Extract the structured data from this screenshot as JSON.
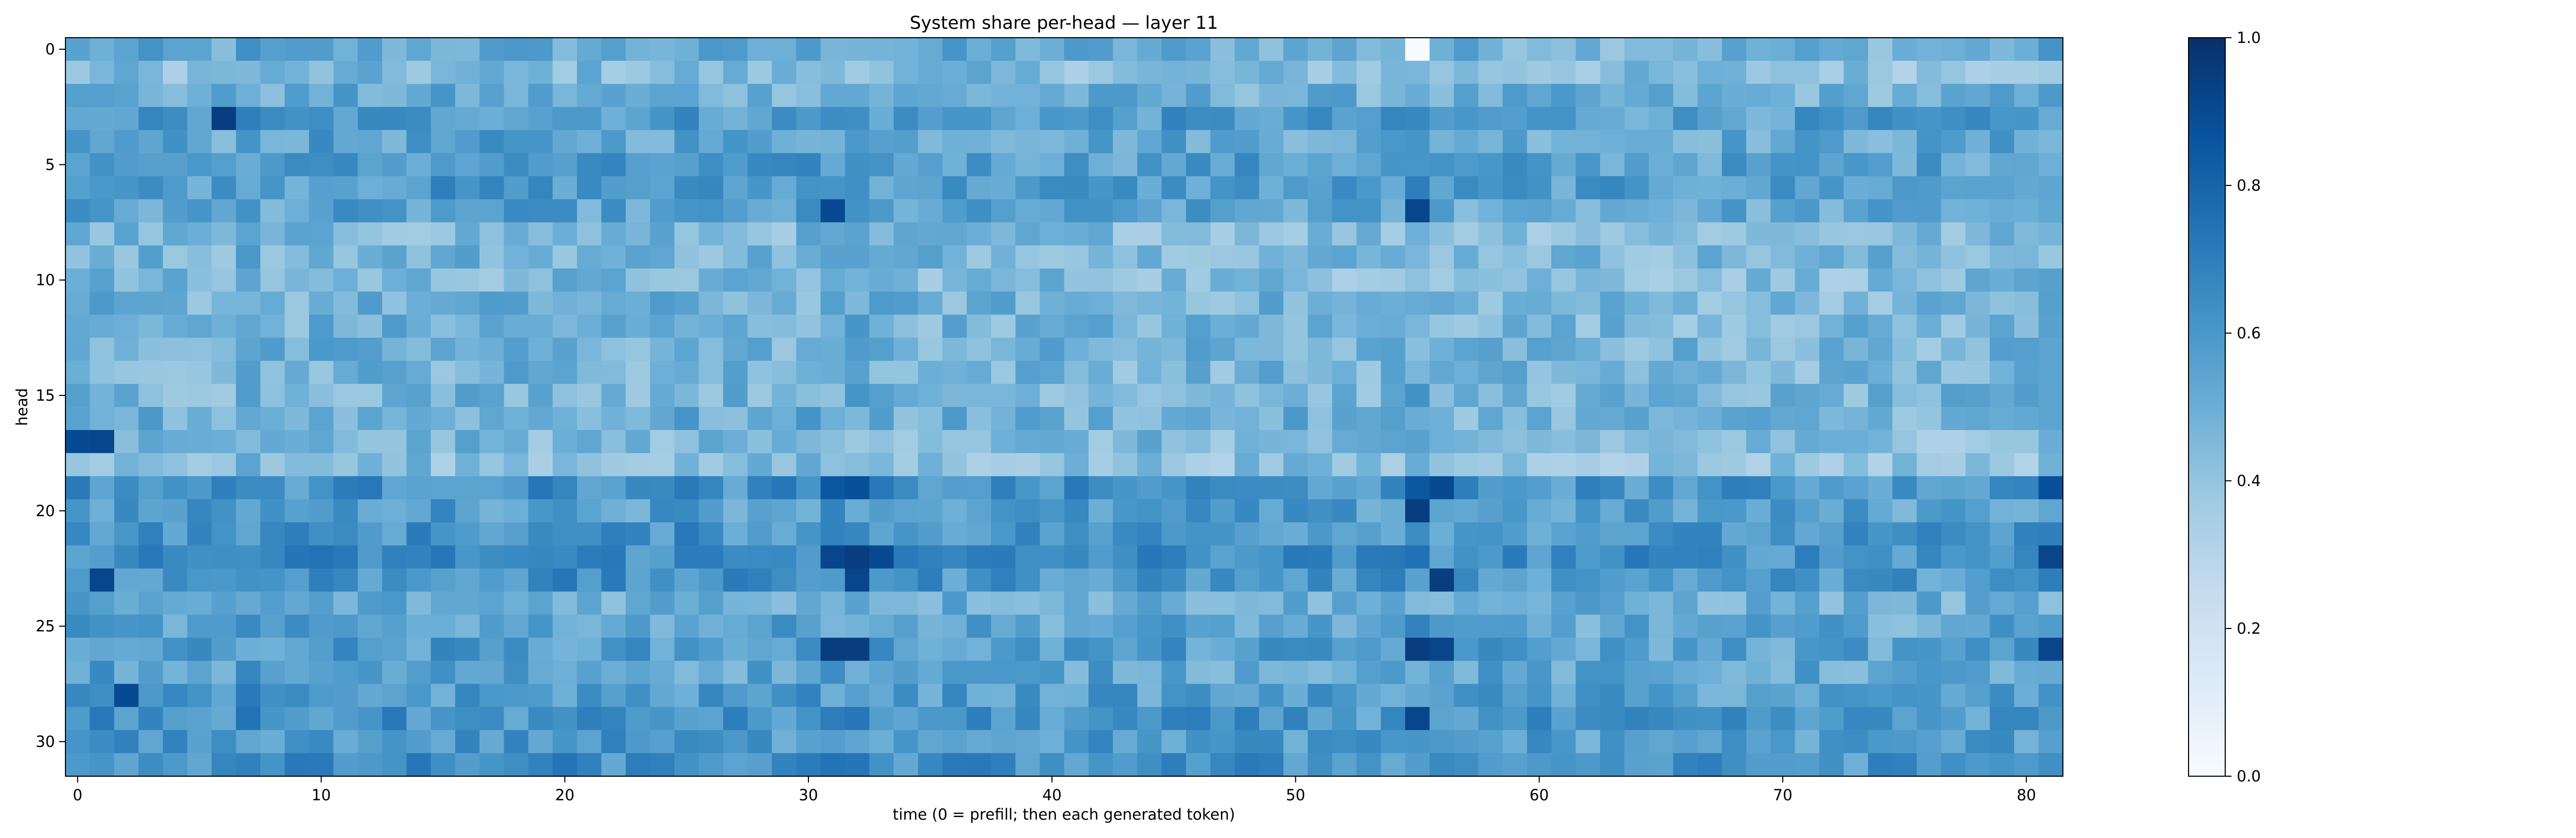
{
  "chart_data": {
    "type": "heatmap",
    "title": "System share per-head — layer 11",
    "xlabel": "time (0 = prefill; then each generated token)",
    "ylabel": "head",
    "n_x": 82,
    "n_y": 32,
    "xlim": [
      0,
      81
    ],
    "ylim": [
      0,
      31
    ],
    "xticks": [
      0,
      10,
      20,
      30,
      40,
      50,
      60,
      70,
      80
    ],
    "yticks": [
      0,
      5,
      10,
      15,
      20,
      25,
      30
    ],
    "colormap": "Blues",
    "vmin": 0.0,
    "vmax": 1.0,
    "colorbar": {
      "ticks": [
        "0.0",
        "0.2",
        "0.4",
        "0.6",
        "0.8",
        "1.0"
      ],
      "position": "right"
    },
    "row_profile": [
      0.5,
      0.38,
      0.48,
      0.62,
      0.55,
      0.6,
      0.62,
      0.55,
      0.4,
      0.45,
      0.4,
      0.45,
      0.45,
      0.45,
      0.45,
      0.45,
      0.48,
      0.4,
      0.35,
      0.68,
      0.6,
      0.66,
      0.72,
      0.66,
      0.5,
      0.55,
      0.6,
      0.55,
      0.6,
      0.65,
      0.62,
      0.68
    ],
    "column_profile": [
      0.55,
      0.58,
      0.55,
      0.53,
      0.52,
      0.52,
      0.5,
      0.62,
      0.55,
      0.52,
      0.56,
      0.55,
      0.54,
      0.55,
      0.54,
      0.55,
      0.55,
      0.55,
      0.55,
      0.55,
      0.56,
      0.56,
      0.54,
      0.52,
      0.54,
      0.55,
      0.52,
      0.52,
      0.53,
      0.53,
      0.55,
      0.6,
      0.62,
      0.54,
      0.52,
      0.53,
      0.52,
      0.52,
      0.52,
      0.52,
      0.53,
      0.52,
      0.52,
      0.52,
      0.52,
      0.52,
      0.52,
      0.52,
      0.52,
      0.5,
      0.5,
      0.5,
      0.5,
      0.5,
      0.5,
      0.62,
      0.52,
      0.48,
      0.5,
      0.5,
      0.5,
      0.5,
      0.48,
      0.48,
      0.48,
      0.48,
      0.48,
      0.48,
      0.48,
      0.48,
      0.48,
      0.48,
      0.48,
      0.48,
      0.48,
      0.48,
      0.48,
      0.48,
      0.48,
      0.5,
      0.5,
      0.55
    ],
    "hotspots": [
      {
        "x": 6,
        "y": 3,
        "v": 0.95
      },
      {
        "x": 0,
        "y": 17,
        "v": 0.9
      },
      {
        "x": 1,
        "y": 17,
        "v": 0.92
      },
      {
        "x": 31,
        "y": 7,
        "v": 0.9
      },
      {
        "x": 55,
        "y": 7,
        "v": 0.92
      },
      {
        "x": 31,
        "y": 19,
        "v": 0.85
      },
      {
        "x": 32,
        "y": 19,
        "v": 0.88
      },
      {
        "x": 55,
        "y": 19,
        "v": 0.85
      },
      {
        "x": 56,
        "y": 19,
        "v": 0.9
      },
      {
        "x": 81,
        "y": 19,
        "v": 0.88
      },
      {
        "x": 55,
        "y": 20,
        "v": 0.95
      },
      {
        "x": 31,
        "y": 22,
        "v": 0.92
      },
      {
        "x": 32,
        "y": 22,
        "v": 0.95
      },
      {
        "x": 33,
        "y": 22,
        "v": 0.9
      },
      {
        "x": 32,
        "y": 23,
        "v": 0.92
      },
      {
        "x": 56,
        "y": 23,
        "v": 0.95
      },
      {
        "x": 1,
        "y": 23,
        "v": 0.92
      },
      {
        "x": 81,
        "y": 22,
        "v": 0.92
      },
      {
        "x": 31,
        "y": 26,
        "v": 0.95
      },
      {
        "x": 32,
        "y": 26,
        "v": 0.95
      },
      {
        "x": 55,
        "y": 26,
        "v": 0.95
      },
      {
        "x": 56,
        "y": 26,
        "v": 0.92
      },
      {
        "x": 81,
        "y": 26,
        "v": 0.92
      },
      {
        "x": 55,
        "y": 29,
        "v": 0.92
      },
      {
        "x": 2,
        "y": 28,
        "v": 0.9
      },
      {
        "x": 55,
        "y": 0,
        "v": 0.0
      }
    ]
  }
}
